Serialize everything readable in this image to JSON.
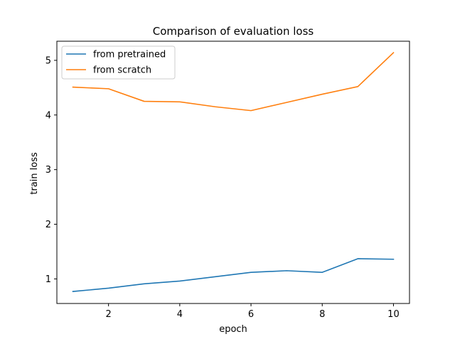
{
  "chart_data": {
    "type": "line",
    "title": "Comparison of evaluation loss",
    "xlabel": "epoch",
    "ylabel": "train loss",
    "x": [
      1,
      2,
      3,
      4,
      5,
      6,
      7,
      8,
      9,
      10
    ],
    "series": [
      {
        "name": "from pretrained",
        "color": "#1f77b4",
        "values": [
          0.77,
          0.83,
          0.91,
          0.96,
          1.04,
          1.12,
          1.15,
          1.12,
          1.37,
          1.36
        ]
      },
      {
        "name": "from scratch",
        "color": "#ff7f0e",
        "values": [
          4.51,
          4.48,
          4.25,
          4.24,
          4.15,
          4.08,
          4.23,
          4.38,
          4.52,
          5.14
        ]
      }
    ],
    "xlim": [
      0.55,
      10.45
    ],
    "ylim": [
      0.55,
      5.35
    ],
    "xticks": [
      2,
      4,
      6,
      8,
      10
    ],
    "yticks": [
      1,
      2,
      3,
      4,
      5
    ],
    "grid": false,
    "legend_position": "upper-left"
  }
}
